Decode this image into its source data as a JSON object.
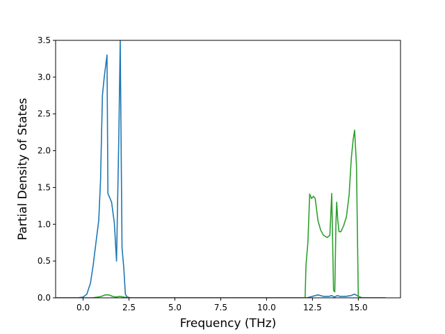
{
  "chart_data": {
    "type": "line",
    "title": "",
    "xlabel": "Frequency (THz)",
    "ylabel": "Partial Density of States",
    "xlim": [
      -1.5,
      17.3
    ],
    "ylim": [
      0,
      3.5
    ],
    "xticks": [
      0.0,
      2.5,
      5.0,
      7.5,
      10.0,
      12.5,
      15.0
    ],
    "xtick_labels": [
      "0.0",
      "2.5",
      "5.0",
      "7.5",
      "10.0",
      "12.5",
      "15.0"
    ],
    "yticks": [
      0.0,
      0.5,
      1.0,
      1.5,
      2.0,
      2.5,
      3.0,
      3.5
    ],
    "ytick_labels": [
      "0.0",
      "0.5",
      "1.0",
      "1.5",
      "2.0",
      "2.5",
      "3.0",
      "3.5"
    ],
    "grid": false,
    "legend": "none",
    "series": [
      {
        "color": "#1f77b4",
        "x": [
          -1.5,
          -0.3,
          0.0,
          0.2,
          0.4,
          0.55,
          0.7,
          0.85,
          0.95,
          1.05,
          1.15,
          1.3,
          1.35,
          1.55,
          1.7,
          1.82,
          1.95,
          2.02,
          2.12,
          2.22,
          2.3,
          2.4,
          2.6,
          3.0,
          5.0,
          8.0,
          11.0,
          12.2,
          12.5,
          12.8,
          13.1,
          13.4,
          13.55,
          13.7,
          13.85,
          14.0,
          14.3,
          14.6,
          14.8,
          15.0,
          15.2,
          16.5
        ],
        "y": [
          0,
          0,
          0.01,
          0.05,
          0.2,
          0.45,
          0.75,
          1.05,
          1.6,
          2.75,
          3.0,
          3.3,
          1.42,
          1.3,
          1.02,
          0.5,
          2.25,
          3.5,
          0.68,
          0.4,
          0.05,
          0.01,
          0,
          0,
          0,
          0,
          0,
          0,
          0.02,
          0.04,
          0.02,
          0.02,
          0.03,
          0.01,
          0.03,
          0.02,
          0.02,
          0.03,
          0.05,
          0.02,
          0,
          0
        ]
      },
      {
        "color": "#2ca02c",
        "x": [
          -1.5,
          0.5,
          0.8,
          1.0,
          1.2,
          1.4,
          1.6,
          1.8,
          2.0,
          2.2,
          2.5,
          5.0,
          8.0,
          11.0,
          12.1,
          12.15,
          12.25,
          12.35,
          12.45,
          12.55,
          12.65,
          12.8,
          12.95,
          13.1,
          13.3,
          13.45,
          13.55,
          13.65,
          13.72,
          13.78,
          13.82,
          13.88,
          13.95,
          14.05,
          14.2,
          14.35,
          14.5,
          14.62,
          14.72,
          14.8,
          14.9,
          15.0,
          15.2,
          16.5
        ],
        "y": [
          0,
          0,
          0.01,
          0.02,
          0.04,
          0.04,
          0.02,
          0.01,
          0.02,
          0.01,
          0,
          0,
          0,
          0,
          0,
          0.45,
          0.75,
          1.41,
          1.35,
          1.38,
          1.35,
          1.05,
          0.92,
          0.85,
          0.82,
          0.85,
          1.42,
          0.1,
          0.08,
          1.0,
          1.3,
          1.05,
          0.9,
          0.9,
          0.98,
          1.1,
          1.4,
          1.9,
          2.15,
          2.28,
          1.8,
          0.02,
          0,
          0
        ]
      }
    ]
  }
}
